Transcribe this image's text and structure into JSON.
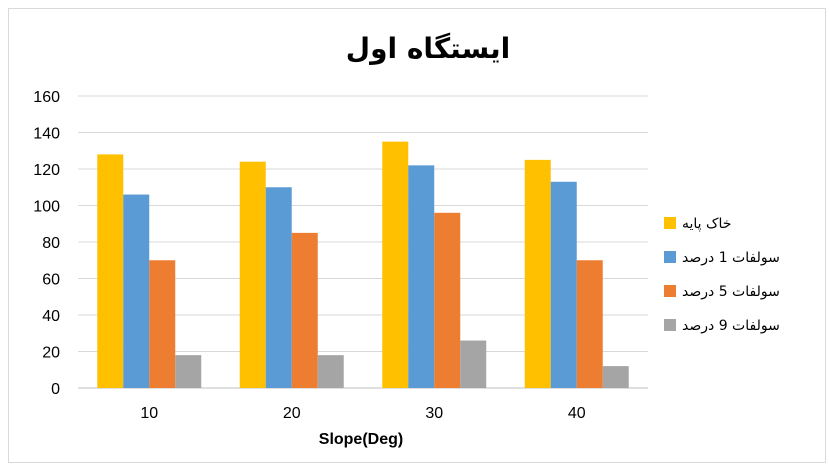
{
  "chart_data": {
    "type": "bar",
    "title": "ایستگاه اول",
    "xlabel": "Slope(Deg)",
    "ylabel": "",
    "categories": [
      "10",
      "20",
      "30",
      "40"
    ],
    "ylim": [
      0,
      160
    ],
    "yticks": [
      "0",
      "20",
      "40",
      "60",
      "80",
      "100",
      "120",
      "140",
      "160"
    ],
    "grid": true,
    "legend_position": "right",
    "series": [
      {
        "name": "خاک پایه",
        "color": "#FFC000",
        "values": [
          128,
          124,
          135,
          125
        ]
      },
      {
        "name": "سولفات 1 درصد",
        "color": "#5B9BD5",
        "values": [
          106,
          110,
          122,
          113
        ]
      },
      {
        "name": "سولفات 5 درصد",
        "color": "#ED7D31",
        "values": [
          70,
          85,
          96,
          70
        ]
      },
      {
        "name": "سولفات 9 درصد",
        "color": "#A5A5A5",
        "values": [
          18,
          18,
          26,
          12
        ]
      }
    ]
  }
}
